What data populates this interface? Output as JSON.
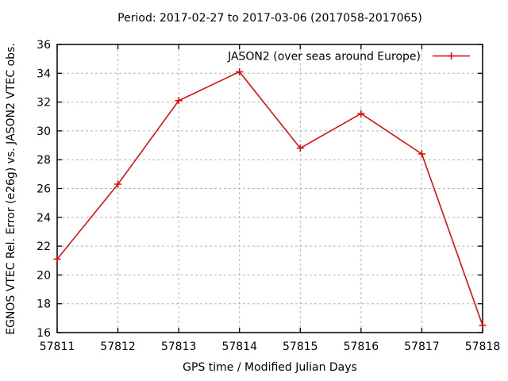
{
  "chart_data": {
    "type": "line",
    "title": "Period: 2017-02-27 to 2017-03-06 (2017058-2017065)",
    "xlabel": "GPS time / Modified Julian Days",
    "ylabel": "EGNOS VTEC Rel. Error (e26g) vs. JASON2 VTEC obs.",
    "x": [
      57811,
      57812,
      57813,
      57814,
      57815,
      57816,
      57817,
      57818
    ],
    "series": [
      {
        "name": "JASON2 (over seas around Europe)",
        "values": [
          21.1,
          26.3,
          32.1,
          34.1,
          28.8,
          31.2,
          28.4,
          16.5
        ],
        "color": "#e60000",
        "marker": "plus"
      }
    ],
    "xlim": [
      57811,
      57818
    ],
    "ylim": [
      16,
      36
    ],
    "xticks": [
      57811,
      57812,
      57813,
      57814,
      57815,
      57816,
      57817,
      57818
    ],
    "yticks": [
      16,
      18,
      20,
      22,
      24,
      26,
      28,
      30,
      32,
      34,
      36
    ],
    "grid": true,
    "grid_color": "#b3b3b3",
    "axis_color": "#000000",
    "background_color": "#ffffff",
    "legend_position": "top-right"
  }
}
